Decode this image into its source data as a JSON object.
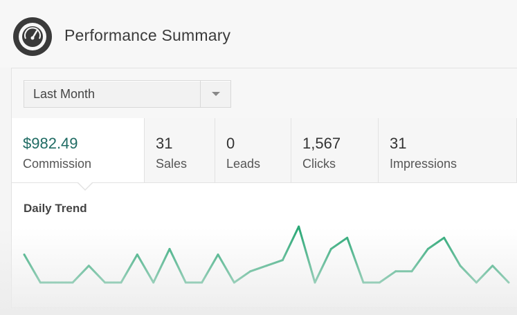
{
  "header": {
    "title": "Performance Summary",
    "logo_icon": "speedometer-icon"
  },
  "filter": {
    "selected": "Last Month",
    "arrow_icon": "triangle-down-icon"
  },
  "stats": [
    {
      "value": "$982.49",
      "label": "Commission",
      "active": true
    },
    {
      "value": "31",
      "label": "Sales",
      "active": false
    },
    {
      "value": "0",
      "label": "Leads",
      "active": false
    },
    {
      "value": "1,567",
      "label": "Clicks",
      "active": false
    },
    {
      "value": "31",
      "label": "Impressions",
      "active": false
    }
  ],
  "trend": {
    "title": "Daily Trend"
  },
  "colors": {
    "accent": "#1f6b63",
    "line": "#2aa876"
  },
  "chart_data": {
    "type": "line",
    "title": "Daily Trend",
    "series": [
      {
        "values": [
          5,
          0,
          0,
          0,
          3,
          0,
          0,
          5,
          0,
          6,
          0,
          0,
          5,
          0,
          2,
          3,
          4,
          10,
          0,
          6,
          8,
          0,
          0,
          2,
          2,
          6,
          8,
          3,
          0,
          3,
          0
        ]
      }
    ],
    "ylim": [
      0,
      10
    ],
    "grid": false
  }
}
